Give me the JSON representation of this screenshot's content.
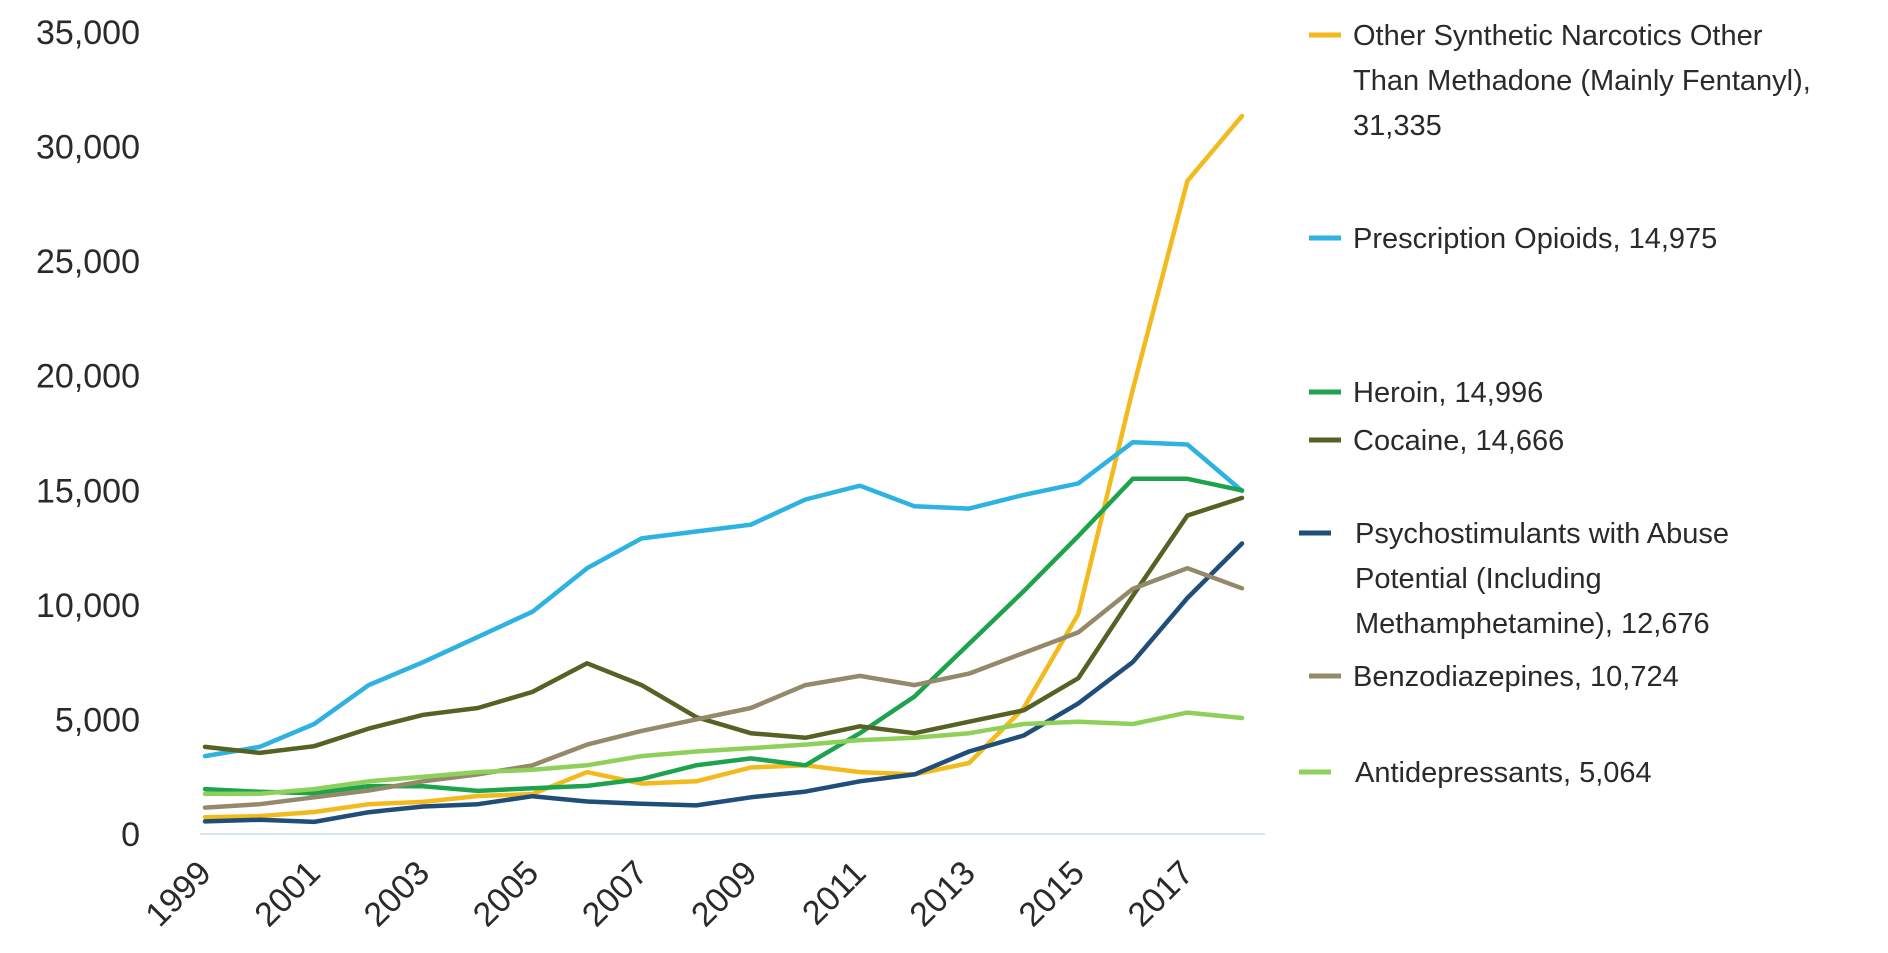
{
  "chart_data": {
    "type": "line",
    "title": "",
    "xlabel": "",
    "ylabel": "",
    "ylim": [
      0,
      35000
    ],
    "y_ticks": [
      "0",
      "5,000",
      "10,000",
      "15,000",
      "20,000",
      "25,000",
      "30,000",
      "35,000"
    ],
    "x_tick_labels": [
      "1999",
      "2001",
      "2003",
      "2005",
      "2007",
      "2009",
      "2011",
      "2013",
      "2015",
      "2017"
    ],
    "x": [
      1999,
      2000,
      2001,
      2002,
      2003,
      2004,
      2005,
      2006,
      2007,
      2008,
      2009,
      2010,
      2011,
      2012,
      2013,
      2014,
      2015,
      2016,
      2017,
      2018
    ],
    "grid": false,
    "legend_position": "right",
    "series": [
      {
        "name": "Other Synthetic Narcotics Other Than Methadone (Mainly Fentanyl), 31,335",
        "legend_lines": [
          "Other Synthetic Narcotics Other",
          "Than Methadone (Mainly Fentanyl),",
          "31,335"
        ],
        "color": "#F2BA1D",
        "values": [
          730,
          780,
          960,
          1300,
          1400,
          1660,
          1740,
          2700,
          2200,
          2300,
          2900,
          3000,
          2700,
          2600,
          3100,
          5500,
          9600,
          19400,
          28500,
          31335
        ]
      },
      {
        "name": "Prescription Opioids, 14,975",
        "legend_lines": [
          "Prescription Opioids, 14,975"
        ],
        "color": "#2EB2E1",
        "values": [
          3400,
          3800,
          4800,
          6500,
          7500,
          8600,
          9700,
          11600,
          12900,
          13200,
          13500,
          14600,
          15200,
          14300,
          14200,
          14800,
          15300,
          17100,
          17000,
          14975
        ]
      },
      {
        "name": "Heroin, 14,996",
        "legend_lines": [
          "Heroin, 14,996"
        ],
        "color": "#1DA34E",
        "values": [
          1960,
          1840,
          1780,
          2090,
          2080,
          1880,
          2000,
          2100,
          2400,
          3000,
          3300,
          3000,
          4400,
          6000,
          8300,
          10600,
          13000,
          15500,
          15500,
          14996
        ]
      },
      {
        "name": "Cocaine, 14,666",
        "legend_lines": [
          "Cocaine, 14,666"
        ],
        "color": "#566124",
        "values": [
          3800,
          3540,
          3830,
          4600,
          5200,
          5500,
          6200,
          7450,
          6500,
          5100,
          4400,
          4200,
          4700,
          4400,
          4900,
          5400,
          6800,
          10400,
          13900,
          14666
        ]
      },
      {
        "name": "Psychostimulants with Abuse Potential (Including Methamphetamine), 12,676",
        "legend_lines": [
          "Psychostimulants with Abuse",
          "Potential (Including",
          "Methamphetamine), 12,676"
        ],
        "color": "#1F4E79",
        "values": [
          550,
          620,
          530,
          950,
          1200,
          1300,
          1650,
          1420,
          1320,
          1250,
          1600,
          1850,
          2300,
          2600,
          3600,
          4300,
          5700,
          7500,
          10300,
          12676
        ]
      },
      {
        "name": "Benzodiazepines, 10,724",
        "legend_lines": [
          "Benzodiazepines, 10,724"
        ],
        "color": "#948A6A",
        "values": [
          1150,
          1300,
          1600,
          1900,
          2300,
          2600,
          3000,
          3900,
          4500,
          5000,
          5500,
          6500,
          6900,
          6500,
          7000,
          7900,
          8800,
          10700,
          11600,
          10724
        ]
      },
      {
        "name": "Antidepressants, 5,064",
        "legend_lines": [
          "Antidepressants, 5,064"
        ],
        "color": "#8FD05A",
        "values": [
          1750,
          1760,
          1960,
          2300,
          2500,
          2700,
          2800,
          3000,
          3400,
          3600,
          3750,
          3900,
          4100,
          4200,
          4400,
          4800,
          4900,
          4800,
          5300,
          5064
        ]
      }
    ]
  }
}
